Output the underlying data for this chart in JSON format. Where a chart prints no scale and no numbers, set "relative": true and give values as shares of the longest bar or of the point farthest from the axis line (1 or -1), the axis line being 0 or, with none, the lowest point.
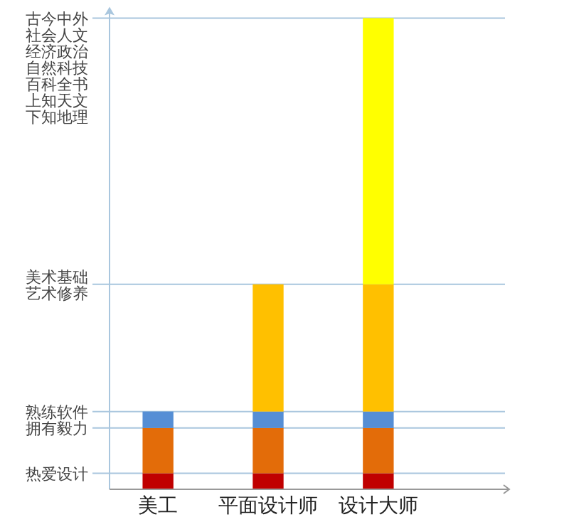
{
  "chart_data": {
    "type": "bar",
    "stacked": true,
    "relative": true,
    "categories": [
      "美工",
      "平面设计师",
      "设计大师"
    ],
    "series": [
      {
        "color": "#c00000",
        "values": [
          0.034,
          0.034,
          0.034
        ]
      },
      {
        "color": "#e36c09",
        "values": [
          0.096,
          0.096,
          0.096
        ]
      },
      {
        "color": "#558ed5",
        "values": [
          0.035,
          0.035,
          0.035
        ]
      },
      {
        "color": "#ffc000",
        "values": [
          null,
          0.27,
          0.27
        ]
      },
      {
        "color": "#ffff00",
        "values": [
          null,
          null,
          0.565
        ]
      }
    ],
    "ref_lines": [
      {
        "axis": "y",
        "value": 1.0,
        "label": "古今中外社会人文经济政治自然科技百科全书上知天文下知地理",
        "color": "#a9c6de"
      },
      {
        "axis": "y",
        "value": 0.435,
        "label": "美术基础艺术修养",
        "color": "#a9c6de"
      },
      {
        "axis": "y",
        "value": 0.165,
        "label": "熟练软件",
        "color": "#a9c6de"
      },
      {
        "axis": "y",
        "value": 0.13,
        "label": "拥有毅力",
        "color": "#a9c6de"
      },
      {
        "axis": "y",
        "value": 0.034,
        "label": "热爱设计",
        "color": "#a9c6de"
      }
    ]
  }
}
